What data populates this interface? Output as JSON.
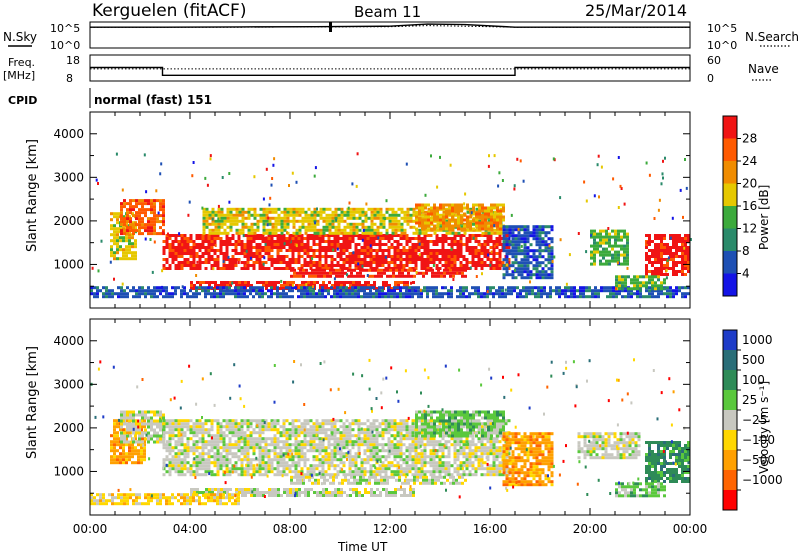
{
  "header": {
    "station": "Kerguelen (fitACF)",
    "beam": "Beam 11",
    "date": "25/Mar/2014"
  },
  "top_panels": {
    "nsky_label": "N.Sky",
    "nsky_ticks": [
      "10^5",
      "10^0"
    ],
    "nsearch_label": "N.Search",
    "nsearch_ticks": [
      "10^5",
      "10^0"
    ],
    "freq_label_line1": "Freq.",
    "freq_label_line2": "[MHz]",
    "freq_ticks": [
      "18",
      "8"
    ],
    "nave_label": "Nave",
    "nave_ticks": [
      "60",
      "0"
    ],
    "cpid_label": "CPID",
    "cpid_value": "normal (fast) 151"
  },
  "chart_data": [
    {
      "type": "line",
      "name": "nsky-nsearch",
      "x_unit": "hours UT",
      "xlim": [
        0,
        24
      ],
      "series": [
        {
          "name": "N.Sky",
          "x": [
            0,
            3,
            6,
            9,
            12,
            13.5,
            15,
            17,
            24
          ],
          "y_log10": [
            4.0,
            4.0,
            4.05,
            4.1,
            4.2,
            4.6,
            4.5,
            4.0,
            4.0
          ]
        },
        {
          "name": "N.Search",
          "x": [
            0,
            3,
            6,
            9,
            12,
            13.5,
            15,
            17,
            24
          ],
          "y_log10": [
            4.0,
            4.0,
            4.0,
            4.05,
            4.1,
            4.3,
            4.2,
            4.0,
            4.0
          ]
        }
      ],
      "ylim": [
        0,
        5
      ]
    },
    {
      "type": "line",
      "name": "freq-nave",
      "x_unit": "hours UT",
      "xlim": [
        0,
        24
      ],
      "series": [
        {
          "name": "Freq.",
          "x": [
            0,
            2.9,
            2.9,
            17.0,
            17.0,
            24
          ],
          "y": [
            13.2,
            13.2,
            10.2,
            10.2,
            13.2,
            13.2
          ]
        },
        {
          "name": "Nave",
          "x": [
            0,
            24
          ],
          "y": [
            28,
            28
          ]
        }
      ],
      "ylim_freq": [
        8,
        18
      ],
      "ylim_nave": [
        0,
        60
      ]
    },
    {
      "type": "heatmap",
      "name": "power",
      "xlabel": "",
      "ylabel": "Slant Range [km]",
      "xlim": [
        0,
        24
      ],
      "ylim": [
        0,
        4500
      ],
      "yticks": [
        1000,
        2000,
        3000,
        4000
      ],
      "colorbar_label": "Power [dB]",
      "colorbar_ticks": [
        4,
        8,
        12,
        16,
        20,
        24,
        28
      ],
      "colorbar_range": [
        0,
        32
      ],
      "colors": [
        "#1414e6",
        "#1e50b4",
        "#2a8a6a",
        "#3caa3c",
        "#e6c800",
        "#f08c00",
        "#ff5a00",
        "#f01414"
      ],
      "regions": [
        {
          "t0": 0.8,
          "t1": 1.8,
          "r0": 1100,
          "r1": 2200,
          "level": 4
        },
        {
          "t0": 1.2,
          "t1": 2.9,
          "r0": 1700,
          "r1": 2500,
          "level": 6
        },
        {
          "t0": 2.9,
          "t1": 16.8,
          "r0": 900,
          "r1": 1700,
          "level": 7
        },
        {
          "t0": 8.0,
          "t1": 15.0,
          "r0": 700,
          "r1": 900,
          "level": 7
        },
        {
          "t0": 4.5,
          "t1": 16.5,
          "r0": 1700,
          "r1": 2300,
          "level": 4
        },
        {
          "t0": 13.0,
          "t1": 16.5,
          "r0": 1800,
          "r1": 2400,
          "level": 5
        },
        {
          "t0": 4.0,
          "t1": 13.0,
          "r0": 420,
          "r1": 620,
          "level": 7
        },
        {
          "t0": 0.0,
          "t1": 24.0,
          "r0": 250,
          "r1": 500,
          "level": 1
        },
        {
          "t0": 16.5,
          "t1": 18.5,
          "r0": 700,
          "r1": 1900,
          "level": 1
        },
        {
          "t0": 20.0,
          "t1": 21.5,
          "r0": 1000,
          "r1": 1800,
          "level": 3
        },
        {
          "t0": 22.2,
          "t1": 24.0,
          "r0": 800,
          "r1": 1700,
          "level": 7
        },
        {
          "t0": 21.0,
          "t1": 23.0,
          "r0": 450,
          "r1": 750,
          "level": 3
        }
      ]
    },
    {
      "type": "heatmap",
      "name": "velocity",
      "xlabel": "Time UT",
      "ylabel": "Slant Range [km]",
      "xlim": [
        0,
        24
      ],
      "ylim": [
        0,
        4500
      ],
      "yticks": [
        1000,
        2000,
        3000,
        4000
      ],
      "xticks": [
        "00:00",
        "04:00",
        "08:00",
        "12:00",
        "16:00",
        "20:00",
        "00:00"
      ],
      "colorbar_label": "Velocity [m s⁻¹]",
      "colorbar_ticks": [
        "1000",
        "500",
        "100",
        "25",
        "−25",
        "−100",
        "−500",
        "−1000"
      ],
      "colors": [
        "#1e3cc8",
        "#2a6e78",
        "#2e8b57",
        "#5ac83c",
        "#c8c8c0",
        "#ffd700",
        "#ffa000",
        "#ff6400",
        "#ff0000"
      ],
      "regions": [
        {
          "t0": 0.8,
          "t1": 2.2,
          "r0": 1200,
          "r1": 2200,
          "level": 6
        },
        {
          "t0": 1.2,
          "t1": 2.9,
          "r0": 1700,
          "r1": 2400,
          "level": 4
        },
        {
          "t0": 2.9,
          "t1": 16.8,
          "r0": 900,
          "r1": 2200,
          "level": 4
        },
        {
          "t0": 8.0,
          "t1": 15.0,
          "r0": 700,
          "r1": 900,
          "level": 4
        },
        {
          "t0": 4.0,
          "t1": 13.0,
          "r0": 420,
          "r1": 620,
          "level": 4
        },
        {
          "t0": 0.0,
          "t1": 6.0,
          "r0": 250,
          "r1": 500,
          "level": 5
        },
        {
          "t0": 13.0,
          "t1": 16.5,
          "r0": 1800,
          "r1": 2400,
          "level": 3
        },
        {
          "t0": 16.5,
          "t1": 18.5,
          "r0": 700,
          "r1": 1900,
          "level": 6
        },
        {
          "t0": 19.5,
          "t1": 22.0,
          "r0": 1300,
          "r1": 1900,
          "level": 4
        },
        {
          "t0": 22.2,
          "t1": 24.0,
          "r0": 800,
          "r1": 1700,
          "level": 2
        },
        {
          "t0": 21.0,
          "t1": 23.0,
          "r0": 450,
          "r1": 750,
          "level": 3
        }
      ]
    }
  ]
}
